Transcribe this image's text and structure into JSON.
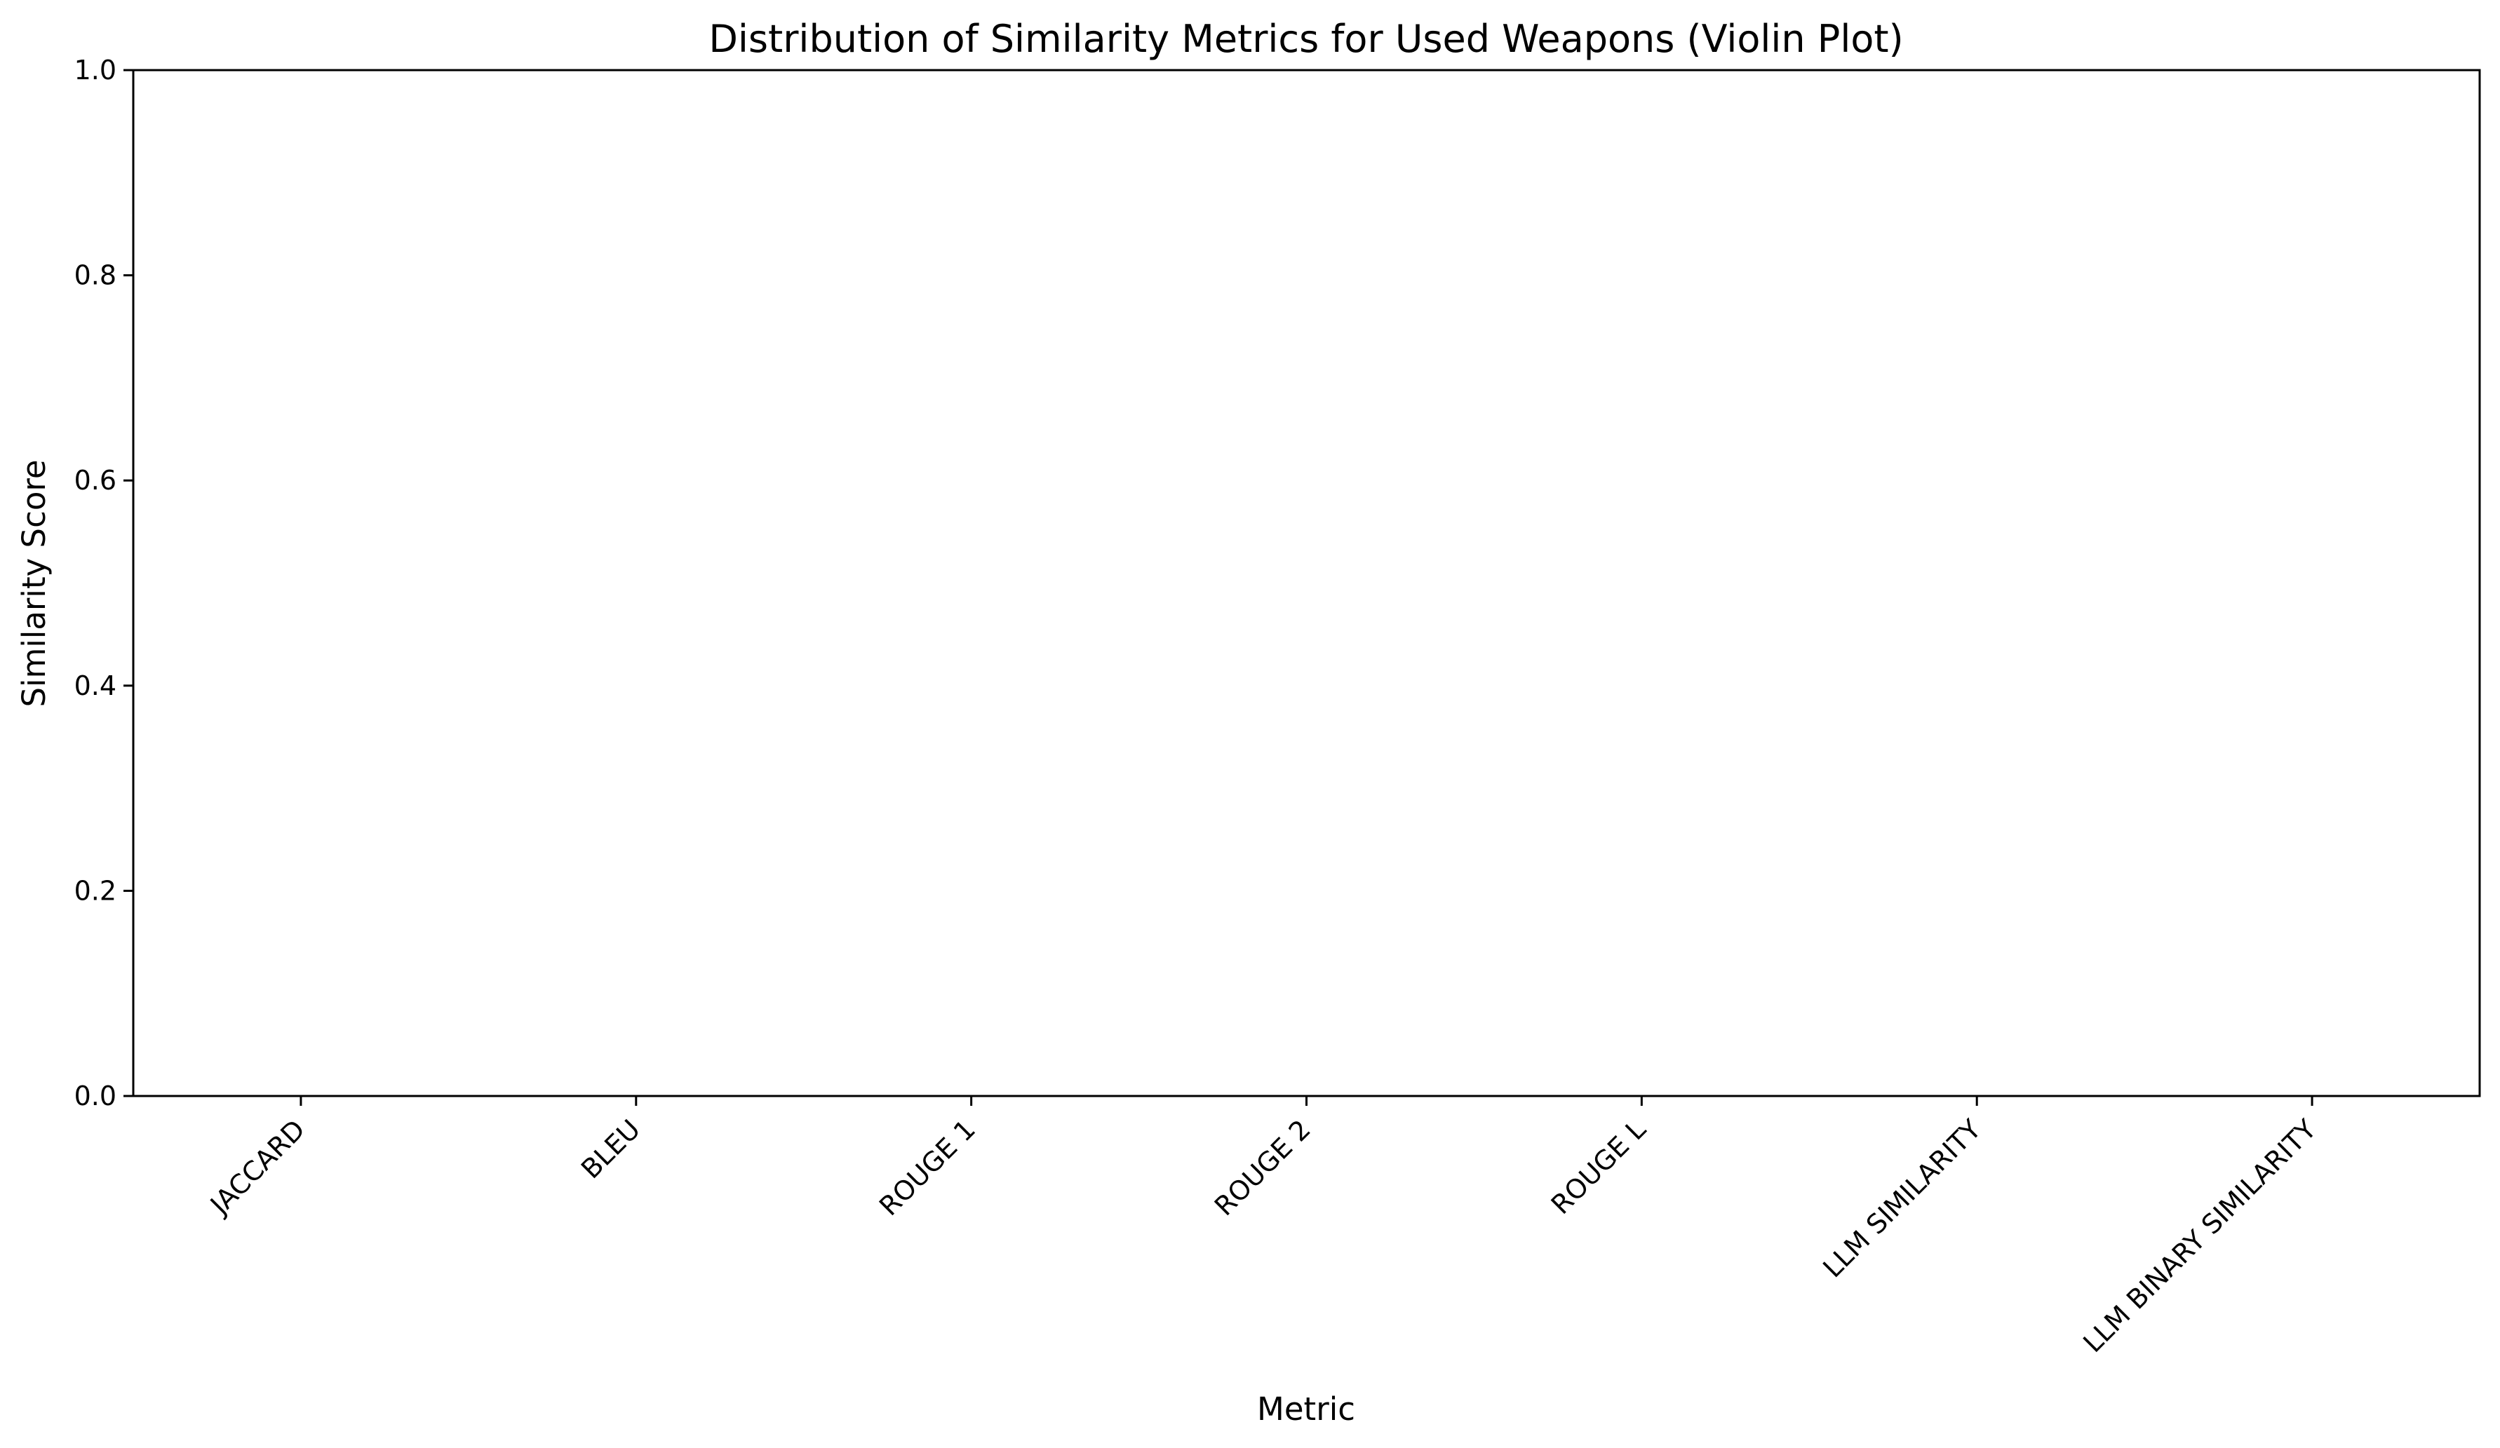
{
  "chart_data": {
    "type": "violin",
    "title": "Distribution of Similarity Metrics for Used Weapons (Violin Plot)",
    "xlabel": "Metric",
    "ylabel": "Similarity Score",
    "categories": [
      "JACCARD",
      "BLEU",
      "ROUGE 1",
      "ROUGE 2",
      "ROUGE L",
      "LLM SIMILARITY",
      "LLM BINARY SIMILARITY"
    ],
    "series": [],
    "ylim": [
      0,
      1
    ],
    "yticks": [
      0.0,
      0.2,
      0.4,
      0.6,
      0.8,
      1.0
    ],
    "ytick_labels": [
      "0.0",
      "0.2",
      "0.4",
      "0.6",
      "0.8",
      "1.0"
    ],
    "grid": false,
    "legend": "none"
  }
}
